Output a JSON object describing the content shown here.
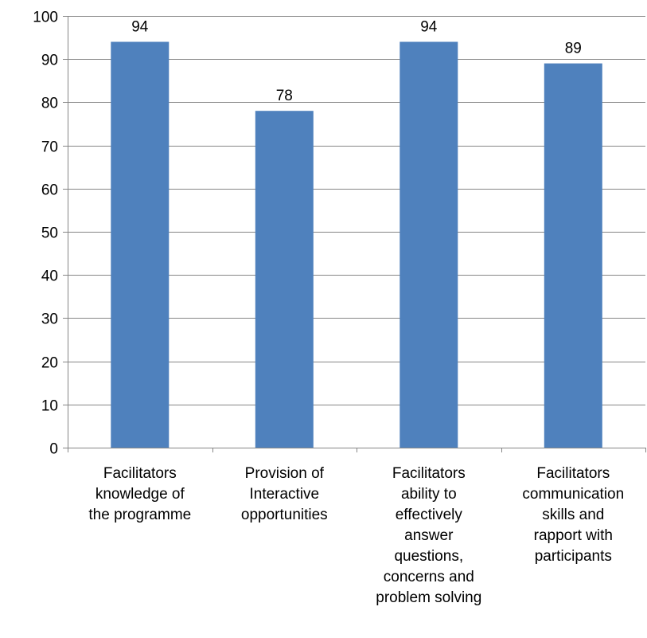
{
  "chart_data": {
    "type": "bar",
    "categories": [
      [
        "Facilitators",
        "knowledge of",
        "the programme"
      ],
      [
        "Provision of",
        "Interactive",
        "opportunities"
      ],
      [
        "Facilitators",
        "ability to",
        "effectively",
        "answer",
        "questions,",
        "concerns and",
        "problem solving"
      ],
      [
        "Facilitators",
        "communication",
        "skills and",
        "rapport with",
        "participants"
      ]
    ],
    "values": [
      94,
      78,
      94,
      89
    ],
    "ylim": [
      0,
      100
    ],
    "yticks": [
      0,
      10,
      20,
      30,
      40,
      50,
      60,
      70,
      80,
      90,
      100
    ],
    "grid": true,
    "data_labels": true,
    "bar_color": "#4f81bd",
    "grid_color": "#868686"
  }
}
